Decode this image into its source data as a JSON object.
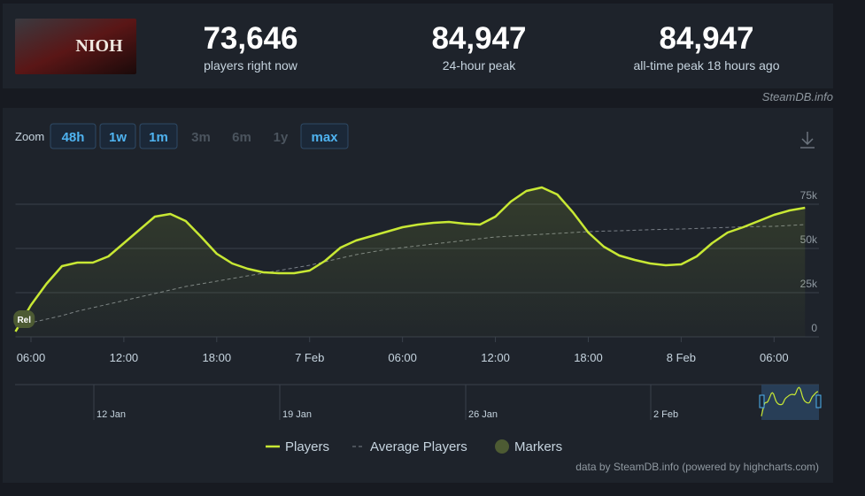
{
  "header": {
    "logo": "NIOH",
    "stats": [
      {
        "value": "73,646",
        "label": "players right now"
      },
      {
        "value": "84,947",
        "label": "24-hour peak"
      },
      {
        "value": "84,947",
        "label": "all-time peak 18 hours ago"
      }
    ],
    "source": "SteamDB.info"
  },
  "zoom": {
    "label": "Zoom",
    "options": [
      "48h",
      "1w",
      "1m",
      "3m",
      "6m",
      "1y",
      "max"
    ]
  },
  "chart_data": {
    "type": "line",
    "x": [
      -1,
      0,
      1,
      2,
      3,
      4,
      5,
      6,
      7,
      8,
      9,
      10,
      11,
      12,
      13,
      14,
      15,
      16,
      17,
      18,
      19,
      20,
      21,
      22,
      23,
      24,
      25,
      26,
      27,
      28,
      29,
      30,
      31,
      32,
      33,
      34,
      35,
      36,
      37,
      38,
      39,
      40,
      41,
      42,
      43,
      44,
      45,
      46,
      47,
      48,
      49,
      50
    ],
    "series": [
      {
        "name": "Players",
        "color": "#c8e834",
        "values": [
          3000,
          18000,
          30000,
          40000,
          42000,
          42000,
          45500,
          53000,
          60500,
          68000,
          69500,
          65500,
          56500,
          47000,
          41500,
          38500,
          36500,
          36000,
          36000,
          37500,
          43000,
          50500,
          54500,
          57000,
          59500,
          62000,
          63500,
          64500,
          65000,
          64000,
          63500,
          68000,
          76500,
          82500,
          84500,
          80500,
          70500,
          59000,
          51000,
          46000,
          43500,
          41500,
          40500,
          41000,
          45500,
          53000,
          59000,
          62000,
          65500,
          69000,
          71500,
          73000
        ]
      },
      {
        "name": "Average Players",
        "color": "#7a8088",
        "dashed": true,
        "values": [
          6000,
          8000,
          10000,
          12000,
          14500,
          16500,
          18500,
          20500,
          22500,
          24500,
          26500,
          28500,
          30000,
          31500,
          33000,
          34500,
          36000,
          37500,
          39000,
          40500,
          42500,
          44500,
          46500,
          48000,
          49500,
          50500,
          51500,
          52500,
          53500,
          54500,
          55500,
          56500,
          57000,
          57500,
          58000,
          58500,
          59000,
          59500,
          59800,
          60000,
          60300,
          60600,
          60800,
          61000,
          61300,
          61600,
          61900,
          62200,
          62400,
          62500,
          63000,
          63500
        ]
      }
    ],
    "markers": {
      "name": "Markers",
      "color": "#4d5b33",
      "points": [
        {
          "x": -0.5,
          "label": "Rel"
        }
      ]
    },
    "xlim": [
      -1,
      50.9
    ],
    "xticks": [
      {
        "value": 0,
        "label": "06:00"
      },
      {
        "value": 6,
        "label": "12:00"
      },
      {
        "value": 12,
        "label": "18:00"
      },
      {
        "value": 18,
        "label": "7 Feb"
      },
      {
        "value": 24,
        "label": "06:00"
      },
      {
        "value": 30,
        "label": "12:00"
      },
      {
        "value": 36,
        "label": "18:00"
      },
      {
        "value": 42,
        "label": "8 Feb"
      },
      {
        "value": 48,
        "label": "06:00"
      }
    ],
    "ylim": [
      0,
      100000
    ],
    "yticks": [
      0,
      {
        "value": 25000,
        "label": "25k"
      },
      {
        "value": 50000,
        "label": "50k"
      },
      {
        "value": 75000,
        "label": "75k"
      }
    ],
    "grid": true
  },
  "navigator": {
    "labels": [
      "12 Jan",
      "19 Jan",
      "26 Jan",
      "2 Feb"
    ]
  },
  "credits": "data by SteamDB.info (powered by highcharts.com)"
}
